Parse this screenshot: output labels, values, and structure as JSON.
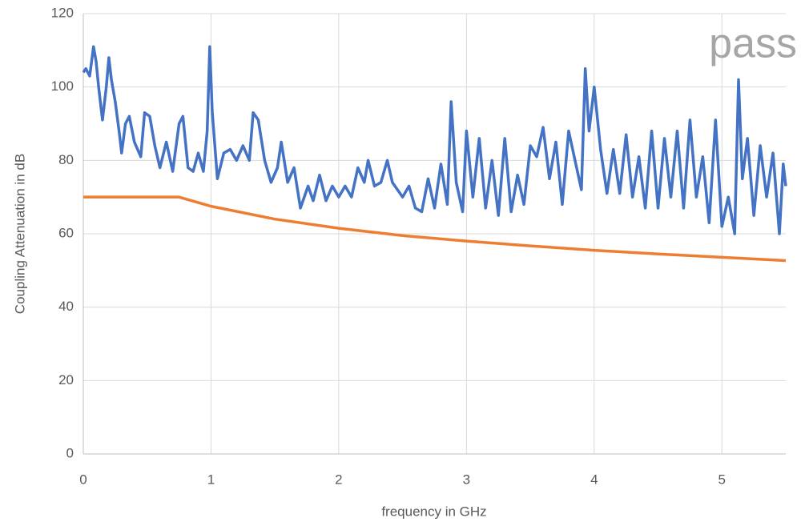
{
  "chart_data": {
    "type": "line",
    "xlabel": "frequency in GHz",
    "ylabel": "Coupling Attenuation in dB",
    "annotation": "pass",
    "xlim": [
      0,
      5.5
    ],
    "xticks": [
      0,
      1,
      2,
      3,
      4,
      5
    ],
    "ylim": [
      0,
      120
    ],
    "yticks": [
      0,
      20,
      40,
      60,
      80,
      100,
      120
    ],
    "grid": true,
    "series": [
      {
        "color": "#4472c4",
        "x": [
          0,
          0.02,
          0.05,
          0.08,
          0.1,
          0.12,
          0.15,
          0.18,
          0.2,
          0.22,
          0.25,
          0.28,
          0.3,
          0.33,
          0.36,
          0.4,
          0.45,
          0.48,
          0.52,
          0.56,
          0.6,
          0.65,
          0.7,
          0.75,
          0.78,
          0.82,
          0.86,
          0.9,
          0.94,
          0.97,
          0.99,
          1.01,
          1.05,
          1.1,
          1.15,
          1.2,
          1.25,
          1.3,
          1.33,
          1.37,
          1.42,
          1.47,
          1.52,
          1.55,
          1.6,
          1.65,
          1.7,
          1.76,
          1.8,
          1.85,
          1.9,
          1.95,
          2.0,
          2.05,
          2.1,
          2.15,
          2.2,
          2.23,
          2.28,
          2.33,
          2.38,
          2.42,
          2.5,
          2.55,
          2.6,
          2.65,
          2.7,
          2.75,
          2.8,
          2.85,
          2.88,
          2.92,
          2.97,
          3.0,
          3.05,
          3.1,
          3.15,
          3.2,
          3.25,
          3.3,
          3.35,
          3.4,
          3.45,
          3.5,
          3.55,
          3.6,
          3.65,
          3.7,
          3.75,
          3.8,
          3.85,
          3.9,
          3.93,
          3.96,
          4.0,
          4.05,
          4.1,
          4.15,
          4.2,
          4.25,
          4.3,
          4.35,
          4.4,
          4.45,
          4.5,
          4.55,
          4.6,
          4.65,
          4.7,
          4.75,
          4.8,
          4.85,
          4.9,
          4.95,
          5.0,
          5.05,
          5.1,
          5.13,
          5.16,
          5.2,
          5.25,
          5.3,
          5.35,
          5.4,
          5.45,
          5.48,
          5.5
        ],
        "values": [
          104,
          105,
          103,
          111,
          107,
          100,
          91,
          100,
          108,
          102,
          96,
          88,
          82,
          90,
          92,
          85,
          81,
          93,
          92,
          84,
          78,
          85,
          77,
          90,
          92,
          78,
          77,
          82,
          77,
          88,
          111,
          93,
          75,
          82,
          83,
          80,
          84,
          80,
          93,
          91,
          80,
          74,
          78,
          85,
          74,
          78,
          67,
          73,
          69,
          76,
          69,
          73,
          70,
          73,
          70,
          78,
          74,
          80,
          73,
          74,
          80,
          74,
          70,
          73,
          67,
          66,
          75,
          67,
          79,
          68,
          96,
          74,
          66,
          88,
          70,
          86,
          67,
          80,
          65,
          86,
          66,
          76,
          68,
          84,
          81,
          89,
          75,
          85,
          68,
          88,
          80,
          72,
          105,
          88,
          100,
          83,
          71,
          83,
          71,
          87,
          70,
          81,
          67,
          88,
          67,
          86,
          70,
          88,
          67,
          91,
          70,
          81,
          63,
          91,
          62,
          70,
          60,
          102,
          75,
          86,
          65,
          84,
          70,
          82,
          60,
          79,
          73
        ]
      },
      {
        "color": "#ed7d31",
        "x": [
          0,
          0.75,
          1,
          1.5,
          2,
          2.5,
          3,
          3.5,
          4,
          4.5,
          5,
          5.5
        ],
        "values": [
          70,
          70,
          67.5,
          64.0,
          61.5,
          59.5,
          58.0,
          56.7,
          55.5,
          54.5,
          53.6,
          52.7
        ]
      }
    ]
  }
}
